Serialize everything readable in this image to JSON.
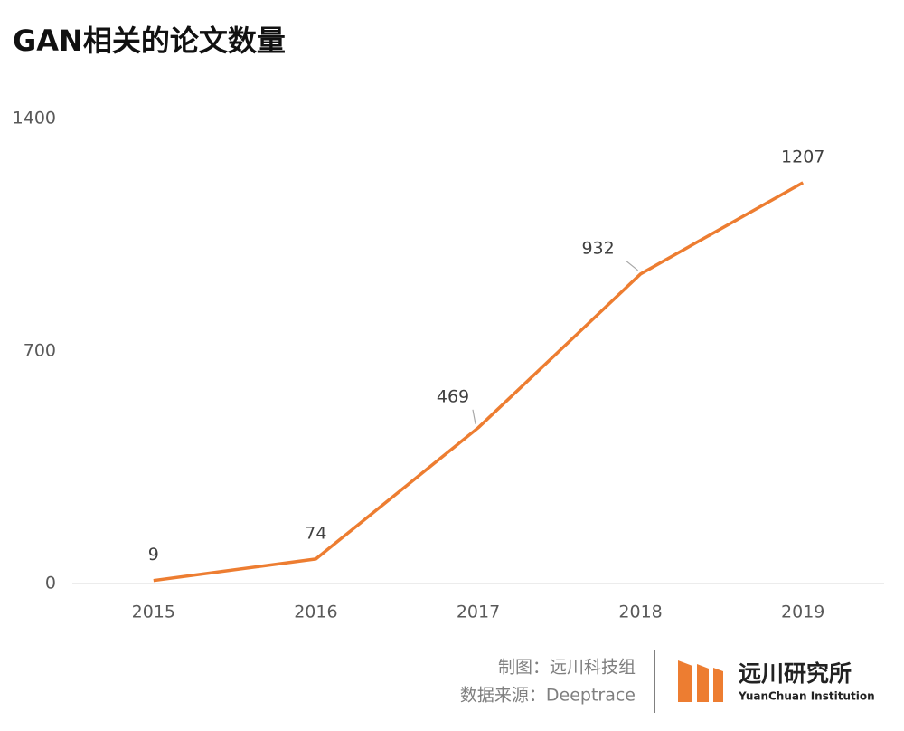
{
  "chart_data": {
    "type": "line",
    "title": "GAN相关的论文数量",
    "categories": [
      "2015",
      "2016",
      "2017",
      "2018",
      "2019"
    ],
    "series": [
      {
        "name": "GAN相关的论文数量",
        "color": "#ed7d31",
        "values": [
          9,
          74,
          469,
          932,
          1207
        ]
      }
    ],
    "ylim": [
      0,
      1400
    ],
    "yticks": [
      0,
      700,
      1400
    ],
    "grid": false
  },
  "footer": {
    "credit": "制图：远川科技组",
    "source": "数据来源：Deeptrace"
  },
  "logo": {
    "name": "远川研究所",
    "subtitle": "YuanChuan Institution"
  }
}
